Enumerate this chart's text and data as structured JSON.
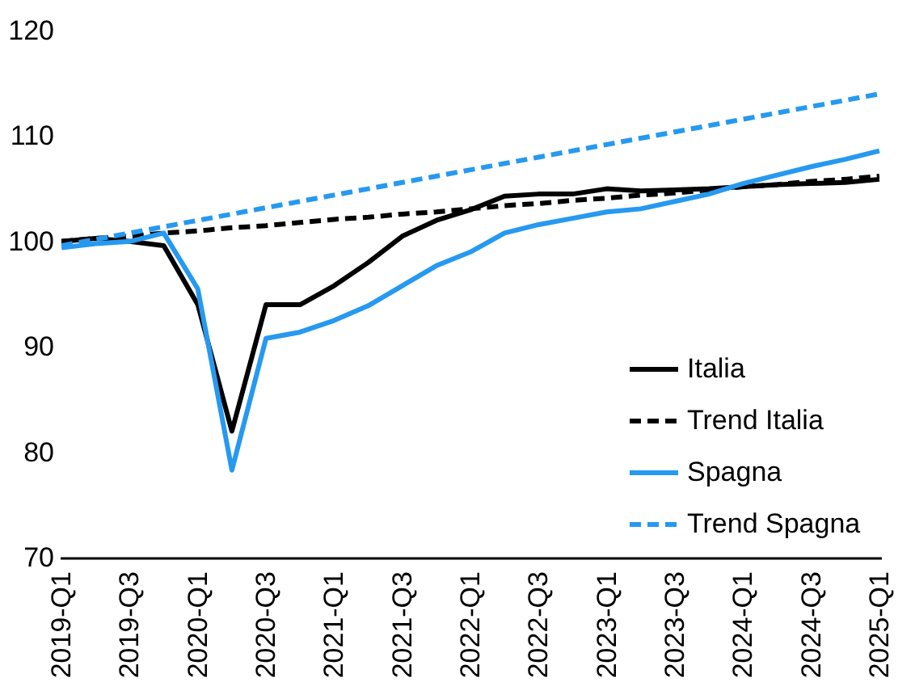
{
  "chart_data": {
    "type": "line",
    "categories": [
      "2019-Q1",
      null,
      "2019-Q3",
      null,
      "2020-Q1",
      null,
      "2020-Q3",
      null,
      "2021-Q1",
      null,
      "2021-Q3",
      null,
      "2022-Q1",
      null,
      "2022-Q3",
      null,
      "2023-Q1",
      null,
      "2023-Q3",
      null,
      "2024-Q1",
      null,
      "2024-Q3",
      null,
      "2025-Q1"
    ],
    "series": [
      {
        "name": "Italia",
        "color": "#000000",
        "line_style": "solid",
        "values": [
          100,
          100.3,
          100,
          99.6,
          94,
          82,
          94,
          94,
          95.8,
          98,
          100.5,
          102,
          103,
          104.3,
          104.5,
          104.5,
          105,
          104.8,
          104.9,
          105,
          105.2,
          105.4,
          105.5,
          105.6,
          105.9
        ]
      },
      {
        "name": "Trend Italia",
        "color": "#000000",
        "line_style": "dashed",
        "values": [
          100,
          100.3,
          100.5,
          100.8,
          101.0,
          101.3,
          101.5,
          101.8,
          102.1,
          102.3,
          102.6,
          102.8,
          103.1,
          103.4,
          103.6,
          103.9,
          104.1,
          104.4,
          104.6,
          104.9,
          105.2,
          105.4,
          105.7,
          105.9,
          106.2
        ]
      },
      {
        "name": "Spagna",
        "color": "#2699f0",
        "line_style": "solid",
        "values": [
          99.4,
          99.8,
          100,
          100.8,
          95.5,
          78.3,
          90.8,
          91.4,
          92.5,
          93.9,
          95.8,
          97.7,
          99,
          100.8,
          101.6,
          102.2,
          102.8,
          103.1,
          103.8,
          104.5,
          105.5,
          106.3,
          107.1,
          107.8,
          108.6
        ]
      },
      {
        "name": "Trend Spagna",
        "color": "#2699f0",
        "line_style": "dashed",
        "values": [
          99.6,
          100.2,
          100.8,
          101.4,
          102.0,
          102.6,
          103.2,
          103.8,
          104.4,
          105.0,
          105.6,
          106.2,
          106.8,
          107.4,
          108.0,
          108.6,
          109.2,
          109.8,
          110.4,
          111.0,
          111.6,
          112.2,
          112.8,
          113.4,
          114.0
        ]
      }
    ],
    "ylim": [
      70,
      120
    ],
    "yticks": [
      70,
      80,
      90,
      100,
      110,
      120
    ],
    "grid": false,
    "legend": "bottom right"
  }
}
